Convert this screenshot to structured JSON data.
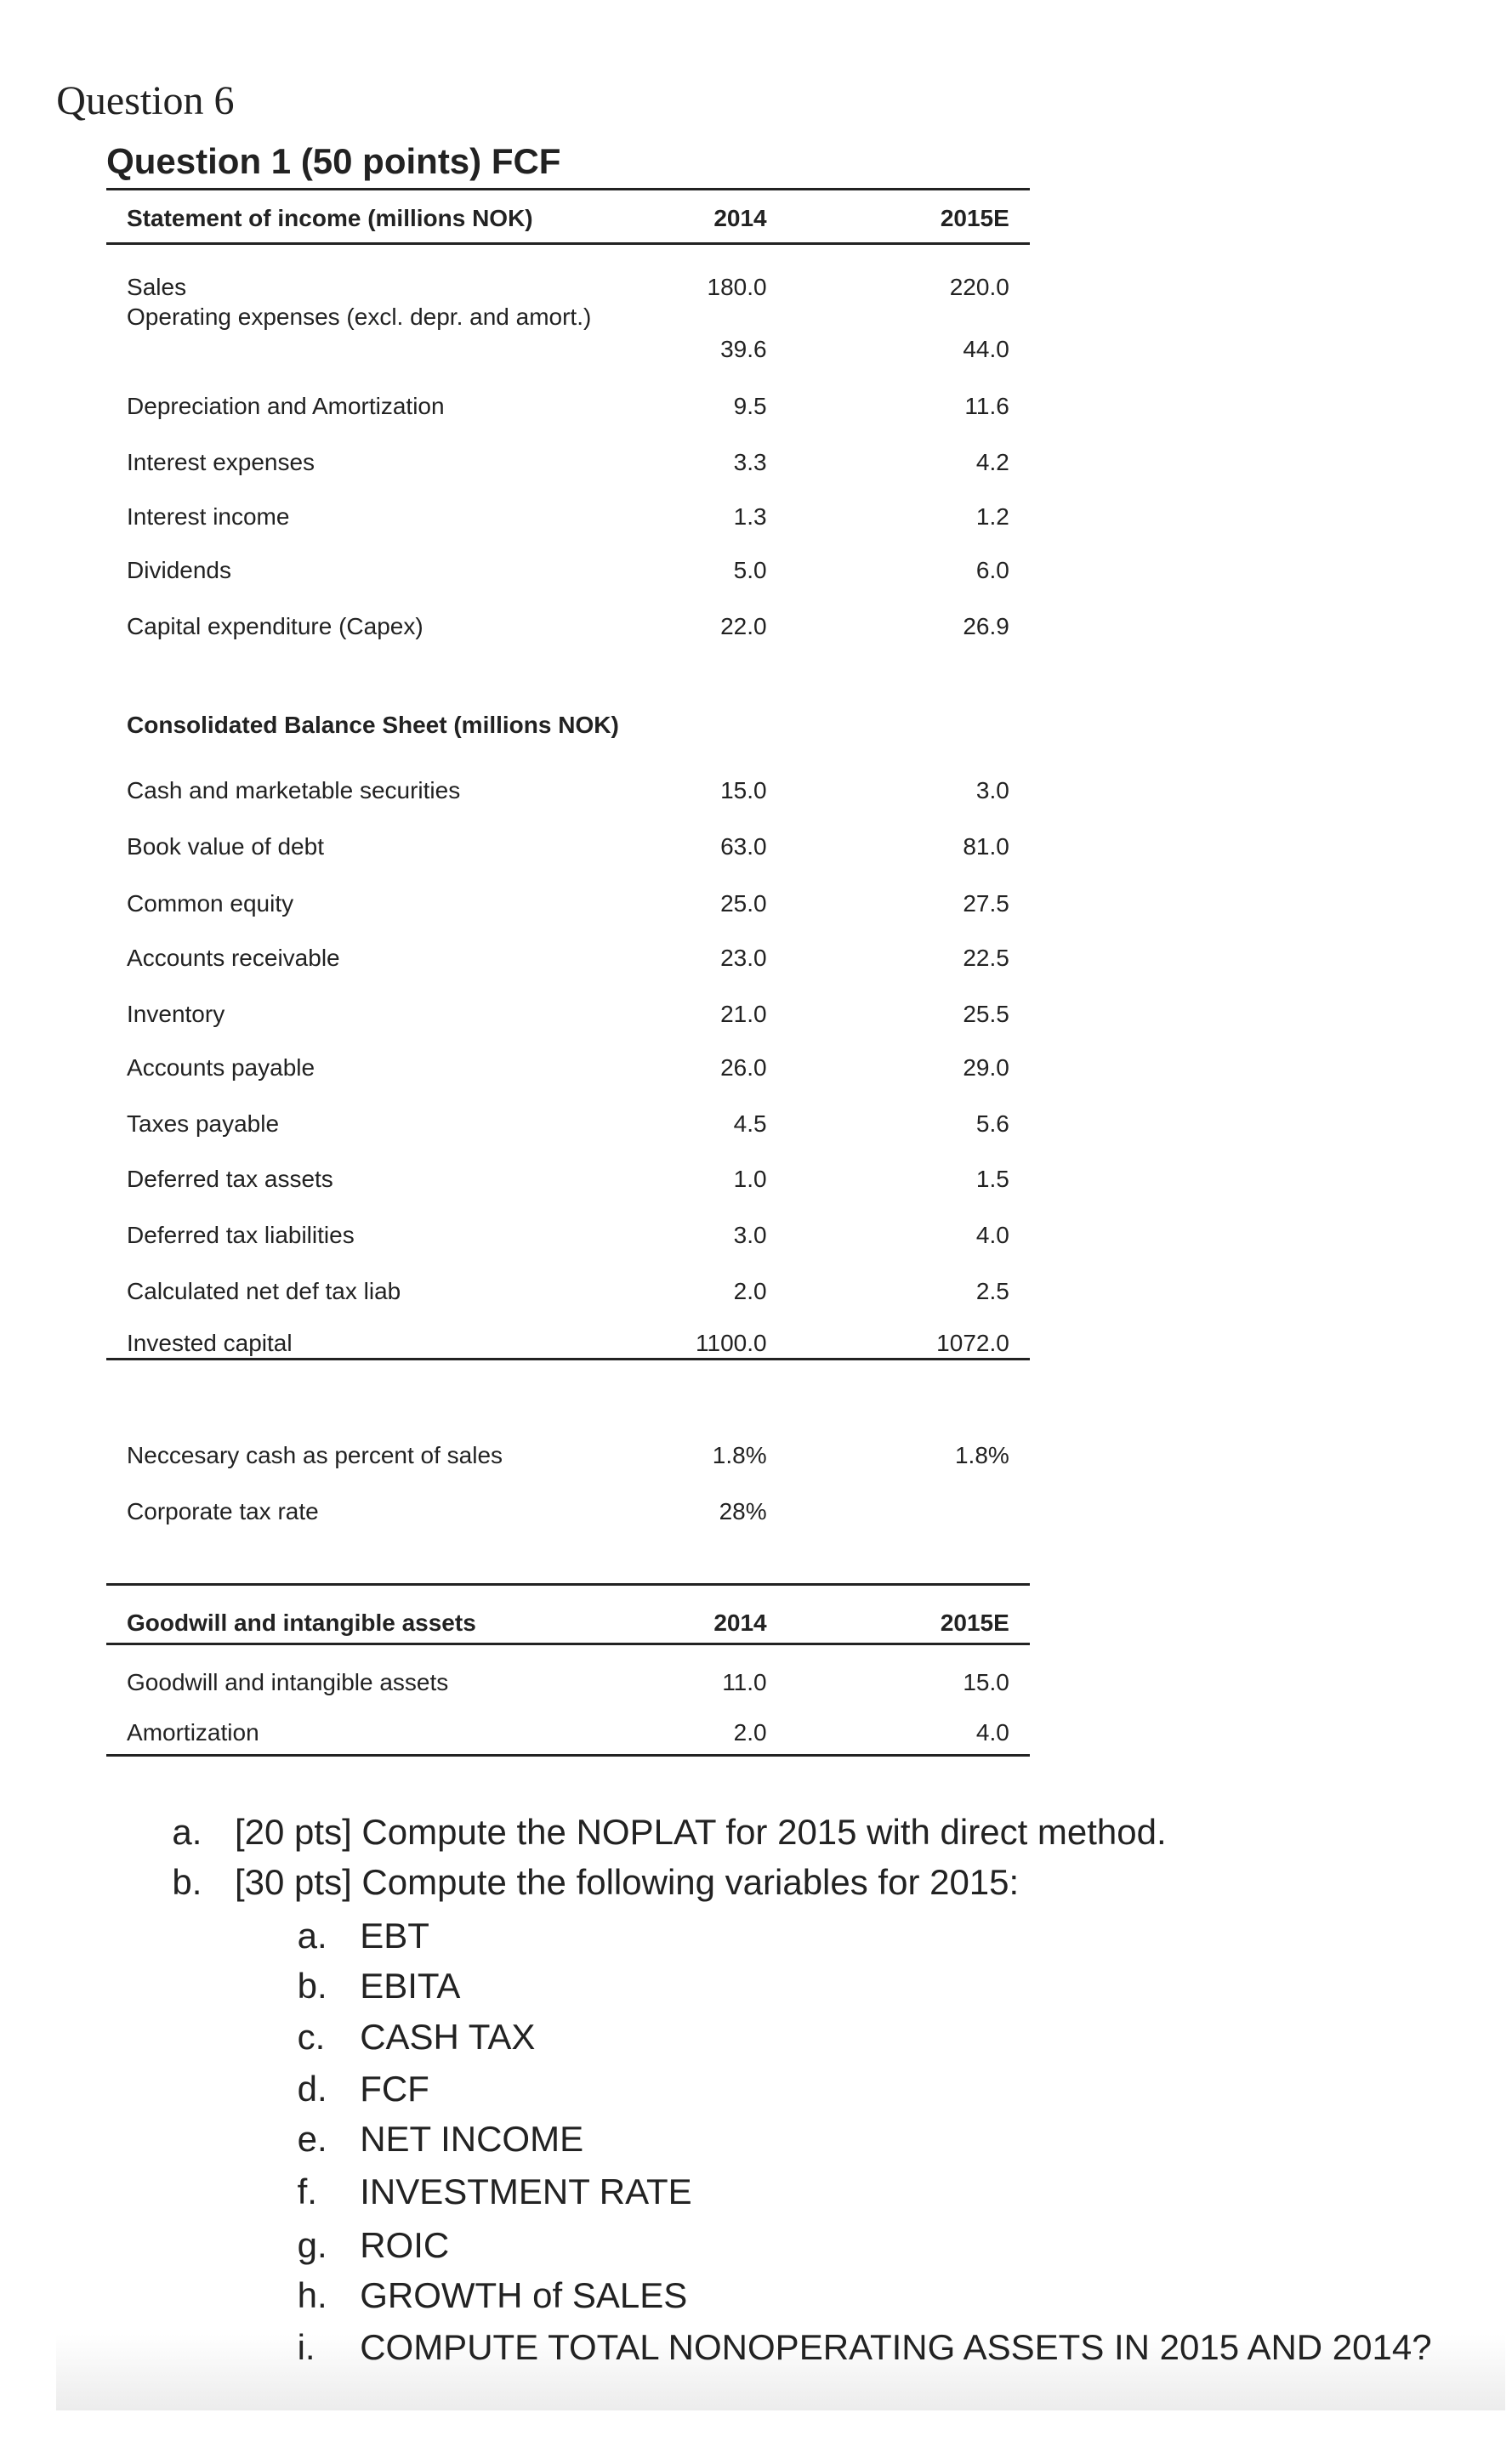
{
  "question_label": "Question 6",
  "title": "Question 1 (50 points) FCF",
  "income_statement": {
    "header": [
      "Statement of income (millions NOK)",
      "2014",
      "2015E"
    ],
    "rows": [
      [
        "Sales",
        "180.0",
        "220.0"
      ],
      [
        "Operating expenses (excl. depr. and amort.)",
        "39.6",
        "44.0"
      ],
      [
        "Depreciation and Amortization",
        "9.5",
        "11.6"
      ],
      [
        "Interest expenses",
        "3.3",
        "4.2"
      ],
      [
        "Interest income",
        "1.3",
        "1.2"
      ],
      [
        "Dividends",
        "5.0",
        "6.0"
      ],
      [
        "Capital expenditure (Capex)",
        "22.0",
        "26.9"
      ]
    ]
  },
  "balance_sheet": {
    "header": "Consolidated Balance Sheet (millions NOK)",
    "rows": [
      [
        "Cash and marketable securities",
        "15.0",
        "3.0"
      ],
      [
        "Book value of debt",
        "63.0",
        "81.0"
      ],
      [
        "Common equity",
        "25.0",
        "27.5"
      ],
      [
        "Accounts receivable",
        "23.0",
        "22.5"
      ],
      [
        "Inventory",
        "21.0",
        "25.5"
      ],
      [
        "Accounts payable",
        "26.0",
        "29.0"
      ],
      [
        "Taxes payable",
        "4.5",
        "5.6"
      ],
      [
        "Deferred tax assets",
        "1.0",
        "1.5"
      ],
      [
        "Deferred tax liabilities",
        "3.0",
        "4.0"
      ],
      [
        "Calculated net def tax liab",
        "2.0",
        "2.5"
      ],
      [
        "Invested capital",
        "1100.0",
        "1072.0"
      ]
    ]
  },
  "assumptions": {
    "rows": [
      [
        "Neccesary cash as percent of sales",
        "1.8%",
        "1.8%"
      ],
      [
        "Corporate tax rate",
        "28%"
      ]
    ]
  },
  "goodwill": {
    "header": [
      "Goodwill and intangible assets",
      "2014",
      "2015E"
    ],
    "rows": [
      [
        "Goodwill and intangible assets",
        "11.0",
        "15.0"
      ],
      [
        "Amortization",
        "2.0",
        "4.0"
      ]
    ]
  },
  "questions": [
    {
      "marker": "a.",
      "text": "[20 pts] Compute the NOPLAT for 2015 with direct method."
    },
    {
      "marker": "b.",
      "text": "[30 pts] Compute the following variables for 2015:",
      "items": [
        {
          "marker": "a.",
          "text": "EBT"
        },
        {
          "marker": "b.",
          "text": "EBITA"
        },
        {
          "marker": "c.",
          "text": "CASH TAX"
        },
        {
          "marker": "d.",
          "text": "FCF"
        },
        {
          "marker": "e.",
          "text": "NET INCOME"
        },
        {
          "marker": "f.",
          "text": "INVESTMENT RATE"
        },
        {
          "marker": "g.",
          "text": "ROIC"
        },
        {
          "marker": "h.",
          "text": "GROWTH of SALES"
        },
        {
          "marker": "i.",
          "text": "COMPUTE TOTAL NONOPERATING ASSETS IN 2015 AND 2014?"
        }
      ]
    }
  ]
}
